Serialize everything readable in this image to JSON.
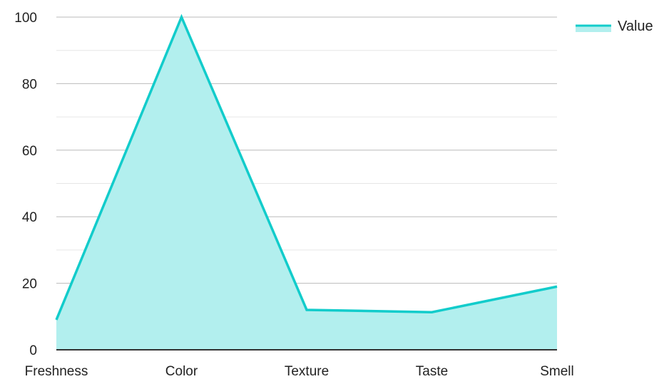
{
  "chart_data": {
    "type": "area",
    "categories": [
      "Freshness",
      "Color",
      "Texture",
      "Taste",
      "Smell"
    ],
    "series": [
      {
        "name": "Value",
        "values": [
          9,
          100,
          12,
          11.3,
          19
        ]
      }
    ],
    "ylim": [
      0,
      100
    ],
    "yticks": [
      0,
      20,
      40,
      60,
      80,
      100
    ],
    "ytick_labels": [
      "0",
      "20",
      "40",
      "60",
      "80",
      "100"
    ],
    "grid": true,
    "legend": {
      "position": "top-right",
      "labels": [
        "Value"
      ]
    },
    "colors": {
      "line": "#12CCCB",
      "fill": "#B2EFEE",
      "major_grid": "#BBBBBB",
      "minor_grid": "#E6E6E6",
      "axis": "#333333"
    }
  }
}
